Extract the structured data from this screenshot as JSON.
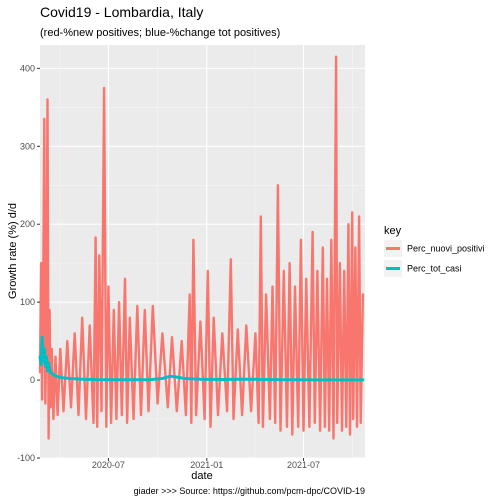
{
  "chart_data": {
    "type": "line",
    "title": "Covid19 - Lombardia, Italy",
    "subtitle": "(red-%new positives; blue-%change tot positives)",
    "xlabel": "date",
    "ylabel": "Growth rate (%) d/d",
    "caption": "giader >>>  Source: https://github.com/pcm-dpc/COVID-19",
    "xlim": [
      "2020-02-24",
      "2021-10-24"
    ],
    "ylim": [
      -100,
      430
    ],
    "x_ticks": [
      "2020-07",
      "2021-01",
      "2021-07"
    ],
    "y_ticks": [
      -100,
      0,
      100,
      200,
      300,
      400
    ],
    "grid": true,
    "legend": {
      "title": "key",
      "placement": "right"
    },
    "series": [
      {
        "name": "Perc_nuovi_positivi",
        "color": "#F8766D",
        "points": [
          [
            "2020-02-24",
            10
          ],
          [
            "2020-02-26",
            150
          ],
          [
            "2020-02-28",
            -25
          ],
          [
            "2020-03-01",
            110
          ],
          [
            "2020-03-03",
            335
          ],
          [
            "2020-03-05",
            -30
          ],
          [
            "2020-03-07",
            60
          ],
          [
            "2020-03-09",
            360
          ],
          [
            "2020-03-11",
            -75
          ],
          [
            "2020-03-13",
            90
          ],
          [
            "2020-03-15",
            -35
          ],
          [
            "2020-03-17",
            40
          ],
          [
            "2020-03-20",
            -50
          ],
          [
            "2020-03-24",
            30
          ],
          [
            "2020-03-28",
            -45
          ],
          [
            "2020-04-02",
            40
          ],
          [
            "2020-04-08",
            -40
          ],
          [
            "2020-04-15",
            50
          ],
          [
            "2020-04-22",
            -35
          ],
          [
            "2020-04-29",
            60
          ],
          [
            "2020-05-06",
            -45
          ],
          [
            "2020-05-13",
            80
          ],
          [
            "2020-05-20",
            -50
          ],
          [
            "2020-05-27",
            70
          ],
          [
            "2020-06-03",
            -55
          ],
          [
            "2020-06-07",
            183
          ],
          [
            "2020-06-10",
            -60
          ],
          [
            "2020-06-14",
            160
          ],
          [
            "2020-06-18",
            -40
          ],
          [
            "2020-06-23",
            375
          ],
          [
            "2020-06-27",
            -60
          ],
          [
            "2020-07-01",
            120
          ],
          [
            "2020-07-06",
            -55
          ],
          [
            "2020-07-11",
            90
          ],
          [
            "2020-07-16",
            -50
          ],
          [
            "2020-07-21",
            100
          ],
          [
            "2020-07-26",
            -45
          ],
          [
            "2020-08-01",
            130
          ],
          [
            "2020-08-05",
            -55
          ],
          [
            "2020-08-10",
            80
          ],
          [
            "2020-08-17",
            -50
          ],
          [
            "2020-08-24",
            95
          ],
          [
            "2020-08-31",
            -45
          ],
          [
            "2020-09-07",
            90
          ],
          [
            "2020-09-14",
            -40
          ],
          [
            "2020-09-22",
            95
          ],
          [
            "2020-10-01",
            -30
          ],
          [
            "2020-10-10",
            60
          ],
          [
            "2020-10-20",
            -35
          ],
          [
            "2020-10-28",
            55
          ],
          [
            "2020-11-06",
            -40
          ],
          [
            "2020-11-15",
            50
          ],
          [
            "2020-11-23",
            -45
          ],
          [
            "2020-11-30",
            110
          ],
          [
            "2020-12-03",
            -55
          ],
          [
            "2020-12-07",
            180
          ],
          [
            "2020-12-12",
            -45
          ],
          [
            "2020-12-20",
            75
          ],
          [
            "2020-12-28",
            -50
          ],
          [
            "2021-01-03",
            140
          ],
          [
            "2021-01-08",
            -60
          ],
          [
            "2021-01-14",
            80
          ],
          [
            "2021-01-22",
            -45
          ],
          [
            "2021-01-30",
            60
          ],
          [
            "2021-02-08",
            -40
          ],
          [
            "2021-02-15",
            155
          ],
          [
            "2021-02-20",
            -50
          ],
          [
            "2021-02-28",
            65
          ],
          [
            "2021-03-08",
            -45
          ],
          [
            "2021-03-16",
            70
          ],
          [
            "2021-03-25",
            -40
          ],
          [
            "2021-04-02",
            60
          ],
          [
            "2021-04-08",
            -55
          ],
          [
            "2021-04-12",
            210
          ],
          [
            "2021-04-16",
            -60
          ],
          [
            "2021-04-22",
            110
          ],
          [
            "2021-04-29",
            -50
          ],
          [
            "2021-05-04",
            120
          ],
          [
            "2021-05-09",
            -55
          ],
          [
            "2021-05-14",
            250
          ],
          [
            "2021-05-19",
            -65
          ],
          [
            "2021-05-25",
            140
          ],
          [
            "2021-05-31",
            -60
          ],
          [
            "2021-06-05",
            150
          ],
          [
            "2021-06-10",
            -70
          ],
          [
            "2021-06-15",
            120
          ],
          [
            "2021-06-21",
            -60
          ],
          [
            "2021-06-26",
            180
          ],
          [
            "2021-07-01",
            -65
          ],
          [
            "2021-07-06",
            130
          ],
          [
            "2021-07-12",
            -60
          ],
          [
            "2021-07-18",
            190
          ],
          [
            "2021-07-22",
            -55
          ],
          [
            "2021-07-27",
            140
          ],
          [
            "2021-08-01",
            -65
          ],
          [
            "2021-08-06",
            170
          ],
          [
            "2021-08-10",
            -60
          ],
          [
            "2021-08-14",
            130
          ],
          [
            "2021-08-18",
            -65
          ],
          [
            "2021-08-22",
            180
          ],
          [
            "2021-08-26",
            -75
          ],
          [
            "2021-08-31",
            415
          ],
          [
            "2021-09-02",
            -55
          ],
          [
            "2021-09-07",
            150
          ],
          [
            "2021-09-11",
            -65
          ],
          [
            "2021-09-15",
            140
          ],
          [
            "2021-09-19",
            -60
          ],
          [
            "2021-09-23",
            200
          ],
          [
            "2021-09-26",
            -70
          ],
          [
            "2021-09-30",
            215
          ],
          [
            "2021-10-02",
            -50
          ],
          [
            "2021-10-06",
            170
          ],
          [
            "2021-10-09",
            -60
          ],
          [
            "2021-10-13",
            210
          ],
          [
            "2021-10-16",
            -55
          ],
          [
            "2021-10-20",
            110
          ]
        ]
      },
      {
        "name": "Perc_tot_casi",
        "color": "#00BFC4",
        "points": [
          [
            "2020-02-24",
            30
          ],
          [
            "2020-02-26",
            20
          ],
          [
            "2020-02-28",
            55
          ],
          [
            "2020-03-01",
            25
          ],
          [
            "2020-03-03",
            40
          ],
          [
            "2020-03-05",
            18
          ],
          [
            "2020-03-07",
            30
          ],
          [
            "2020-03-09",
            12
          ],
          [
            "2020-03-11",
            22
          ],
          [
            "2020-03-14",
            10
          ],
          [
            "2020-03-18",
            8
          ],
          [
            "2020-03-25",
            5
          ],
          [
            "2020-04-05",
            3
          ],
          [
            "2020-04-20",
            2
          ],
          [
            "2020-05-15",
            1
          ],
          [
            "2020-06-15",
            0.5
          ],
          [
            "2020-08-01",
            0.3
          ],
          [
            "2020-09-15",
            0.5
          ],
          [
            "2020-10-10",
            2
          ],
          [
            "2020-10-25",
            5
          ],
          [
            "2020-11-05",
            4
          ],
          [
            "2020-11-20",
            2
          ],
          [
            "2020-12-20",
            1
          ],
          [
            "2021-02-01",
            0.8
          ],
          [
            "2021-03-15",
            1.2
          ],
          [
            "2021-04-15",
            0.8
          ],
          [
            "2021-06-01",
            0.3
          ],
          [
            "2021-08-01",
            0.2
          ],
          [
            "2021-10-20",
            0.2
          ]
        ]
      }
    ]
  }
}
